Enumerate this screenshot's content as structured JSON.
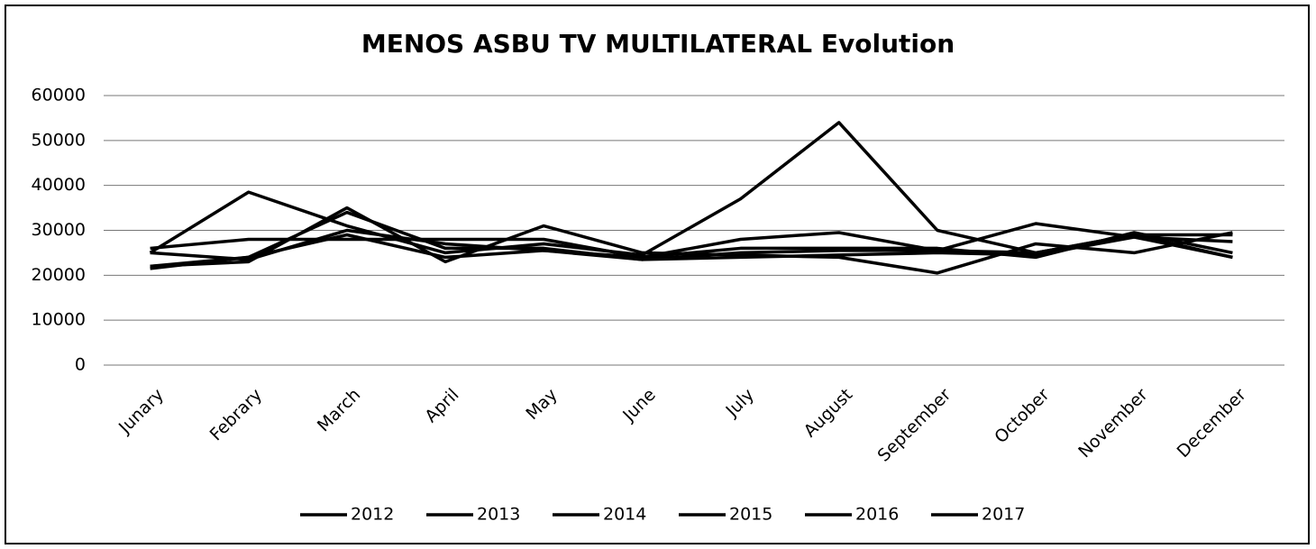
{
  "chart_data": {
    "type": "line",
    "title": "MENOS ASBU TV MULTILATERAL Evolution",
    "categories": [
      "Junary",
      "Febrary",
      "March",
      "April",
      "May",
      "June",
      "July",
      "August",
      "September",
      "October",
      "November",
      "December"
    ],
    "series": [
      {
        "name": "2012",
        "color": "#000000",
        "values": [
          25000,
          38500,
          31000,
          25000,
          27000,
          24500,
          37000,
          54000,
          30000,
          25000,
          29000,
          24000
        ]
      },
      {
        "name": "2013",
        "color": "#000000",
        "values": [
          26000,
          28000,
          28000,
          28000,
          28000,
          24000,
          28000,
          29500,
          25500,
          31500,
          28500,
          27500
        ]
      },
      {
        "name": "2014",
        "color": "#000000",
        "values": [
          22000,
          23000,
          35000,
          23000,
          31000,
          25000,
          24500,
          24000,
          20500,
          27000,
          25000,
          29500
        ]
      },
      {
        "name": "2015",
        "color": "#000000",
        "values": [
          21500,
          24000,
          34000,
          26000,
          26000,
          23500,
          25000,
          25500,
          25500,
          25000,
          29000,
          29000
        ]
      },
      {
        "name": "2016",
        "color": "#000000",
        "values": [
          22000,
          24000,
          29000,
          24000,
          25500,
          24000,
          26000,
          26000,
          26000,
          24000,
          29500,
          25000
        ]
      },
      {
        "name": "2017",
        "color": "#000000",
        "values": [
          25000,
          23500,
          30000,
          27000,
          25500,
          23500,
          24000,
          24500,
          25000,
          24500,
          28500,
          24000
        ]
      }
    ],
    "ylim": [
      0,
      60000
    ],
    "yticks": [
      0,
      10000,
      20000,
      30000,
      40000,
      50000,
      60000
    ],
    "grid": true,
    "legend": "bottom"
  }
}
